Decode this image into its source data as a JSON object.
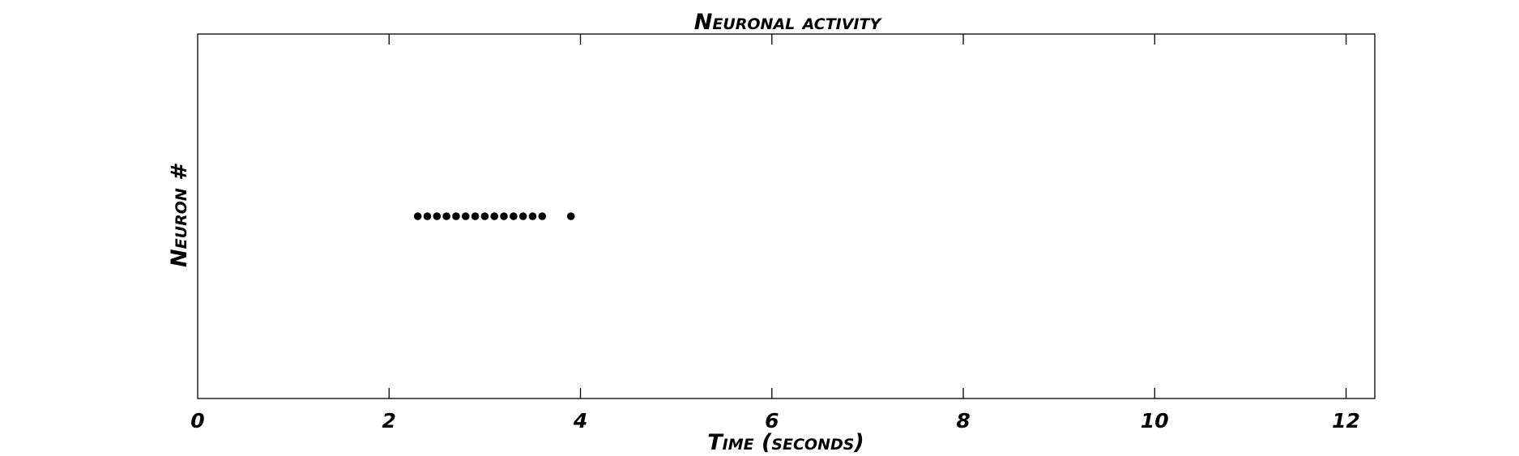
{
  "chart_data": {
    "type": "scatter",
    "title": "Neuronal activity",
    "xlabel": "Time (seconds)",
    "ylabel": "Neuron #",
    "xlim": [
      0,
      12.3
    ],
    "ylim": [
      0,
      2
    ],
    "x_ticks": [
      0,
      2,
      4,
      6,
      8,
      10,
      12
    ],
    "x_tick_labels": [
      "0",
      "2",
      "4",
      "6",
      "8",
      "10",
      "12"
    ],
    "y_ticks": [],
    "grid": false,
    "colors": {
      "marker": "#000000",
      "axes": "#000000"
    },
    "series": [
      {
        "x": [
          2.3,
          2.4,
          2.5,
          2.6,
          2.7,
          2.8,
          2.9,
          3.0,
          3.1,
          3.2,
          3.3,
          3.4,
          3.5,
          3.6,
          3.9
        ],
        "y": [
          1,
          1,
          1,
          1,
          1,
          1,
          1,
          1,
          1,
          1,
          1,
          1,
          1,
          1,
          1
        ]
      }
    ]
  }
}
